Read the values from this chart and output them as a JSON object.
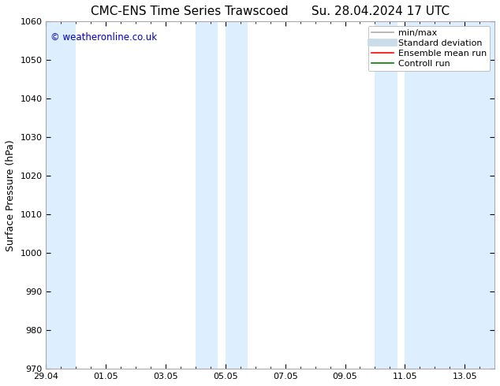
{
  "title_left": "CMC-ENS Time Series Trawscoed",
  "title_right": "Su. 28.04.2024 17 UTC",
  "ylabel": "Surface Pressure (hPa)",
  "ylim": [
    970,
    1060
  ],
  "yticks": [
    970,
    980,
    990,
    1000,
    1010,
    1020,
    1030,
    1040,
    1050,
    1060
  ],
  "xtick_labels": [
    "29.04",
    "01.05",
    "03.05",
    "05.05",
    "07.05",
    "09.05",
    "11.05",
    "13.05"
  ],
  "xtick_positions": [
    0,
    2,
    4,
    6,
    8,
    10,
    12,
    14
  ],
  "xlim": [
    0,
    15
  ],
  "shaded_regions": [
    {
      "x_start": -0.1,
      "x_end": 1.0,
      "color": "#ddeeff"
    },
    {
      "x_start": 5.0,
      "x_end": 5.75,
      "color": "#ddeeff"
    },
    {
      "x_start": 6.0,
      "x_end": 6.75,
      "color": "#ddeeff"
    },
    {
      "x_start": 11.0,
      "x_end": 11.75,
      "color": "#ddeeff"
    },
    {
      "x_start": 12.0,
      "x_end": 15.1,
      "color": "#ddeeff"
    }
  ],
  "watermark_text": "© weatheronline.co.uk",
  "watermark_color": "#0000cc",
  "background_color": "#ffffff",
  "legend_items": [
    {
      "label": "min/max",
      "color": "#aaaaaa",
      "lw": 1.2,
      "style": "solid"
    },
    {
      "label": "Standard deviation",
      "color": "#c8dcea",
      "lw": 7,
      "style": "solid"
    },
    {
      "label": "Ensemble mean run",
      "color": "#ff0000",
      "lw": 1.2,
      "style": "solid"
    },
    {
      "label": "Controll run",
      "color": "#008000",
      "lw": 1.2,
      "style": "solid"
    }
  ],
  "spine_color": "#aaaaaa",
  "tick_color": "#000000",
  "title_fontsize": 11,
  "label_fontsize": 9,
  "tick_fontsize": 8,
  "legend_fontsize": 8
}
